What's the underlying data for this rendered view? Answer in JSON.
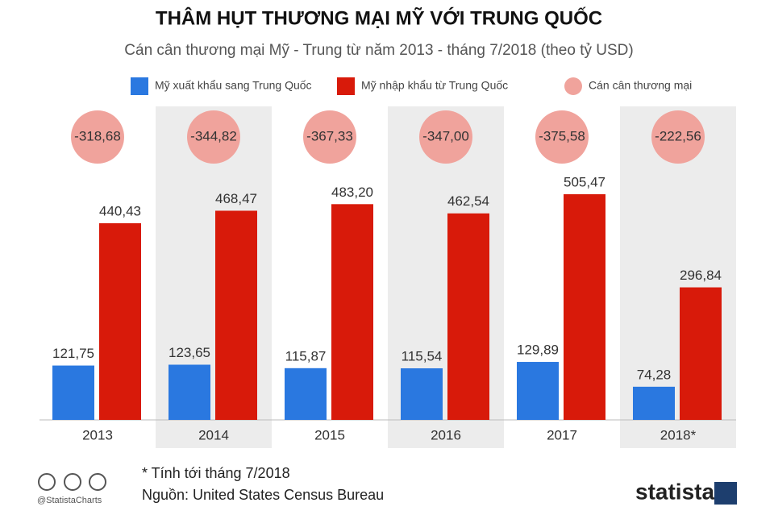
{
  "chart_data": {
    "type": "bar",
    "title": "THÂM HỤT THƯƠNG MẠI MỸ VỚI TRUNG QUỐC",
    "subtitle": "Cán cân thương mại Mỹ - Trung từ năm 2013 - tháng 7/2018 (theo tỷ USD)",
    "categories": [
      "2013",
      "2014",
      "2015",
      "2016",
      "2017",
      "2018*"
    ],
    "series": [
      {
        "name": "Mỹ xuất khẩu sang Trung Quốc",
        "color": "#2a78e0",
        "values": [
          121.75,
          123.65,
          115.87,
          115.54,
          129.89,
          74.28
        ],
        "value_labels": [
          "121,75",
          "123,65",
          "115,87",
          "115,54",
          "129,89",
          "74,28"
        ]
      },
      {
        "name": "Mỹ nhập khẩu từ Trung Quốc",
        "color": "#d81a0a",
        "values": [
          440.43,
          468.47,
          483.2,
          462.54,
          505.47,
          296.84
        ],
        "value_labels": [
          "440,43",
          "468,47",
          "483,20",
          "462,54",
          "505,47",
          "296,84"
        ]
      },
      {
        "name": "Cán cân thương mại",
        "color": "#f0a39c",
        "values": [
          -318.68,
          -344.82,
          -367.33,
          -347.0,
          -375.58,
          -222.56
        ],
        "value_labels": [
          "-318,68",
          "-344,82",
          "-367,33",
          "-347,00",
          "-375,58",
          "-222,56"
        ]
      }
    ],
    "notes": [
      "* Tính tới tháng 7/2018",
      "Nguồn: United States Census Bureau"
    ],
    "handle": "@StatistaCharts",
    "brand": "statista"
  }
}
